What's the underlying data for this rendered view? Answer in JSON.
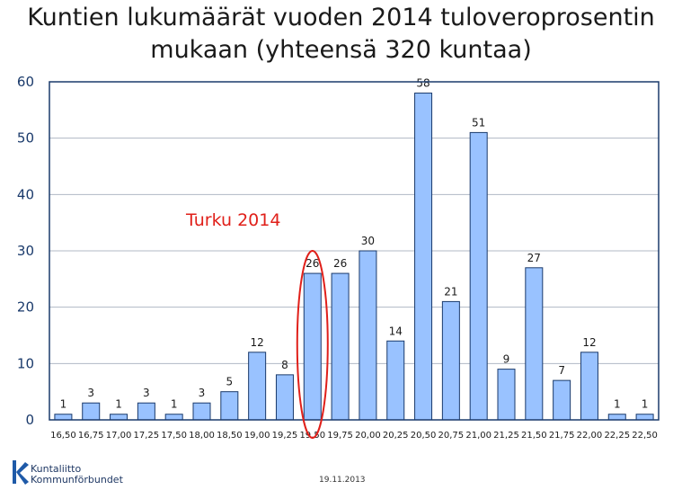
{
  "title_line1": "Kuntien lukumäärät vuoden 2014 tuloveroprosentin",
  "title_line2": "mukaan (yhteensä 320 kuntaa)",
  "annotation": "Turku 2014",
  "logo_line1": "Kuntaliitto",
  "logo_line2": "Kommunförbundet",
  "footer_date": "19.11.2013",
  "colors": {
    "bar_fill": "#99c2ff",
    "bar_stroke": "#1a3a6b",
    "annotation": "#e0201a",
    "grid": "#b0b8c4",
    "axis": "#1a3a6b",
    "logo": "#1f5aa8"
  },
  "chart_data": {
    "type": "bar",
    "title": "Kuntien lukumäärät vuoden 2014 tuloveroprosentin mukaan (yhteensä 320 kuntaa)",
    "categories": [
      "16,50",
      "16,75",
      "17,00",
      "17,25",
      "17,50",
      "18,00",
      "18,50",
      "19,00",
      "19,25",
      "19,50",
      "19,75",
      "20,00",
      "20,25",
      "20,50",
      "20,75",
      "21,00",
      "21,25",
      "21,50",
      "21,75",
      "22,00",
      "22,25",
      "22,50"
    ],
    "values": [
      1,
      3,
      1,
      3,
      1,
      3,
      5,
      12,
      8,
      26,
      26,
      30,
      14,
      58,
      21,
      51,
      9,
      27,
      7,
      12,
      1,
      1
    ],
    "y_ticks": [
      "0",
      "10",
      "20",
      "30",
      "40",
      "50",
      "60"
    ],
    "ylim": [
      0,
      60
    ],
    "grid": "horizontal",
    "highlight_category": "19,50"
  }
}
